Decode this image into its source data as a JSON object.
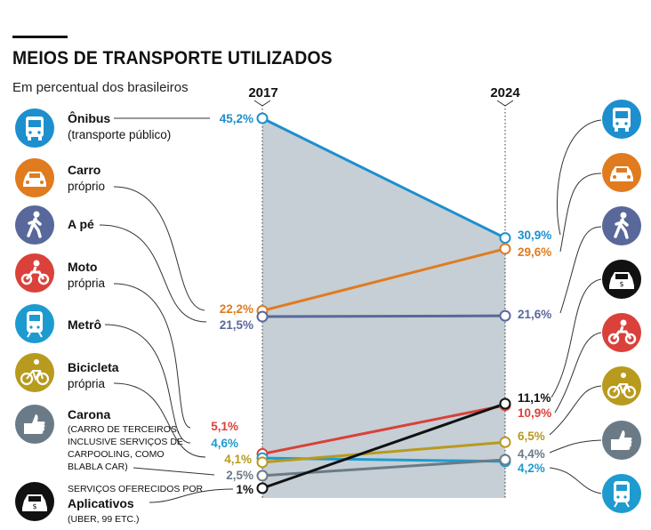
{
  "title": "MEIOS DE TRANSPORTE UTILIZADOS",
  "subtitle": "Em percentual dos brasileiros",
  "chart_data": {
    "type": "line",
    "title": "MEIOS DE TRANSPORTE UTILIZADOS",
    "subtitle": "Em percentual dos brasileiros",
    "x": [
      "2017",
      "2024"
    ],
    "ylim": [
      0,
      46
    ],
    "unit": "%",
    "series": [
      {
        "key": "onibus",
        "name": "Ônibus",
        "sub": "(transporte público)",
        "values": [
          45.2,
          30.9
        ],
        "labels": [
          "45,2%",
          "30,9%"
        ],
        "color": "#1d8fce"
      },
      {
        "key": "carro",
        "name": "Carro",
        "sub": "próprio",
        "values": [
          22.2,
          29.6
        ],
        "labels": [
          "22,2%",
          "29,6%"
        ],
        "color": "#e07b1f"
      },
      {
        "key": "ape",
        "name": "A pé",
        "sub": "",
        "values": [
          21.5,
          21.6
        ],
        "labels": [
          "21,5%",
          "21,6%"
        ],
        "color": "#59689a"
      },
      {
        "key": "moto",
        "name": "Moto",
        "sub": "própria",
        "values": [
          5.1,
          10.9
        ],
        "labels": [
          "5,1%",
          "10,9%"
        ],
        "color": "#d9413a"
      },
      {
        "key": "metro",
        "name": "Metrô",
        "sub": "",
        "values": [
          4.6,
          4.2
        ],
        "labels": [
          "4,6%",
          "4,2%"
        ],
        "color": "#1d9bd0"
      },
      {
        "key": "bicicleta",
        "name": "Bicicleta",
        "sub": "própria",
        "values": [
          4.1,
          6.5
        ],
        "labels": [
          "4,1%",
          "6,5%"
        ],
        "color": "#b89a1e"
      },
      {
        "key": "carona",
        "name": "Carona",
        "sub": "(CARRO DE TERCEIROS, INCLUSIVE SERVIÇOS DE CARPOOLING, COMO BLABLA CAR)",
        "values": [
          2.5,
          4.4
        ],
        "labels": [
          "2,5%",
          "4,4%"
        ],
        "color": "#6a7b87"
      },
      {
        "key": "aplicativos",
        "name": "Aplicativos",
        "pre": "SERVIÇOS OFERECIDOS POR",
        "sub": "(UBER, 99 ETC.)",
        "values": [
          1,
          11.1
        ],
        "labels": [
          "1%",
          "11,1%"
        ],
        "color": "#111111"
      }
    ]
  },
  "icons": {
    "onibus": "bus-icon",
    "carro": "car-icon",
    "ape": "walking-person-icon",
    "moto": "motorcycle-icon",
    "metro": "train-icon",
    "bicicleta": "bicycle-icon",
    "carona": "thumbs-up-icon",
    "aplicativos": "taxi-app-icon"
  },
  "carona_sub_lines": [
    "(CARRO DE TERCEIROS,",
    "INCLUSIVE SERVIÇOS DE",
    "CARPOOLING, COMO",
    "BLABLA CAR)"
  ]
}
